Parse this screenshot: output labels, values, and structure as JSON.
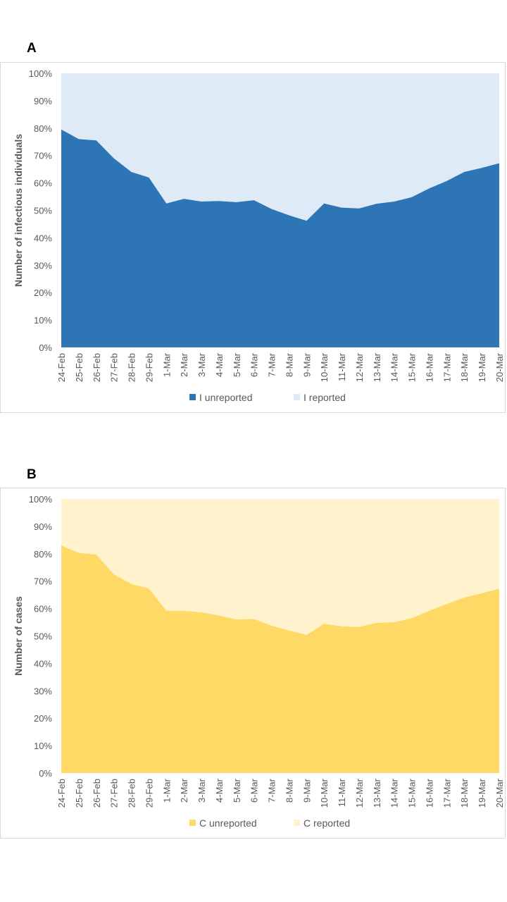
{
  "panels": [
    {
      "letter": "A",
      "chart_data": {
        "type": "area",
        "stacked": "percent",
        "ylabel": "Number of infectious individuals",
        "ylim": [
          0,
          100
        ],
        "yticks": [
          "0%",
          "10%",
          "20%",
          "30%",
          "40%",
          "50%",
          "60%",
          "70%",
          "80%",
          "90%",
          "100%"
        ],
        "categories": [
          "24-Feb",
          "25-Feb",
          "26-Feb",
          "27-Feb",
          "28-Feb",
          "29-Feb",
          "1-Mar",
          "2-Mar",
          "3-Mar",
          "4-Mar",
          "5-Mar",
          "6-Mar",
          "7-Mar",
          "8-Mar",
          "9-Mar",
          "10-Mar",
          "11-Mar",
          "12-Mar",
          "13-Mar",
          "14-Mar",
          "15-Mar",
          "16-Mar",
          "17-Mar",
          "18-Mar",
          "19-Mar",
          "20-Mar"
        ],
        "series": [
          {
            "name": "I unreported",
            "color": "#2e75b6",
            "values": [
              79.5,
              76,
              75.5,
              69,
              64,
              62,
              52.5,
              54.2,
              53.2,
              53.4,
              53,
              53.7,
              50.5,
              48.2,
              46.2,
              52.5,
              51,
              50.7,
              52.4,
              53.2,
              54.8,
              58,
              60.7,
              64,
              65.5,
              67.2
            ]
          },
          {
            "name": "I reported",
            "color": "#deebf7",
            "values": [
              20.5,
              24,
              24.5,
              31,
              36,
              38,
              47.5,
              45.8,
              46.8,
              46.6,
              47,
              46.3,
              49.5,
              51.8,
              53.8,
              47.5,
              49,
              49.3,
              47.6,
              46.8,
              45.2,
              42,
              39.3,
              36,
              34.5,
              32.8
            ]
          }
        ],
        "legend": "bottom"
      }
    },
    {
      "letter": "B",
      "chart_data": {
        "type": "area",
        "stacked": "percent",
        "ylabel": "Number of cases",
        "ylim": [
          0,
          100
        ],
        "yticks": [
          "0%",
          "10%",
          "20%",
          "30%",
          "40%",
          "50%",
          "60%",
          "70%",
          "80%",
          "90%",
          "100%"
        ],
        "categories": [
          "24-Feb",
          "25-Feb",
          "26-Feb",
          "27-Feb",
          "28-Feb",
          "29-Feb",
          "1-Mar",
          "2-Mar",
          "3-Mar",
          "4-Mar",
          "5-Mar",
          "6-Mar",
          "7-Mar",
          "8-Mar",
          "9-Mar",
          "10-Mar",
          "11-Mar",
          "12-Mar",
          "13-Mar",
          "14-Mar",
          "15-Mar",
          "16-Mar",
          "17-Mar",
          "18-Mar",
          "19-Mar",
          "20-Mar"
        ],
        "series": [
          {
            "name": "C unreported",
            "color": "#ffd966",
            "values": [
              83,
              80.3,
              79.7,
              72.5,
              69,
              67.3,
              59.2,
              59.2,
              58.6,
              57.5,
              56,
              56.2,
              53.8,
              52,
              50.4,
              54.5,
              53.5,
              53.3,
              54.8,
              55,
              56.5,
              59.2,
              61.7,
              64,
              65.6,
              67.3
            ]
          },
          {
            "name": "C reported",
            "color": "#fff2cc",
            "values": [
              17,
              19.7,
              20.3,
              27.5,
              31,
              32.7,
              40.8,
              40.8,
              41.4,
              42.5,
              44,
              43.8,
              46.2,
              48,
              49.6,
              45.5,
              46.5,
              46.7,
              45.2,
              45,
              43.5,
              40.8,
              38.3,
              36,
              34.4,
              32.7
            ]
          }
        ],
        "legend": "bottom"
      }
    }
  ]
}
